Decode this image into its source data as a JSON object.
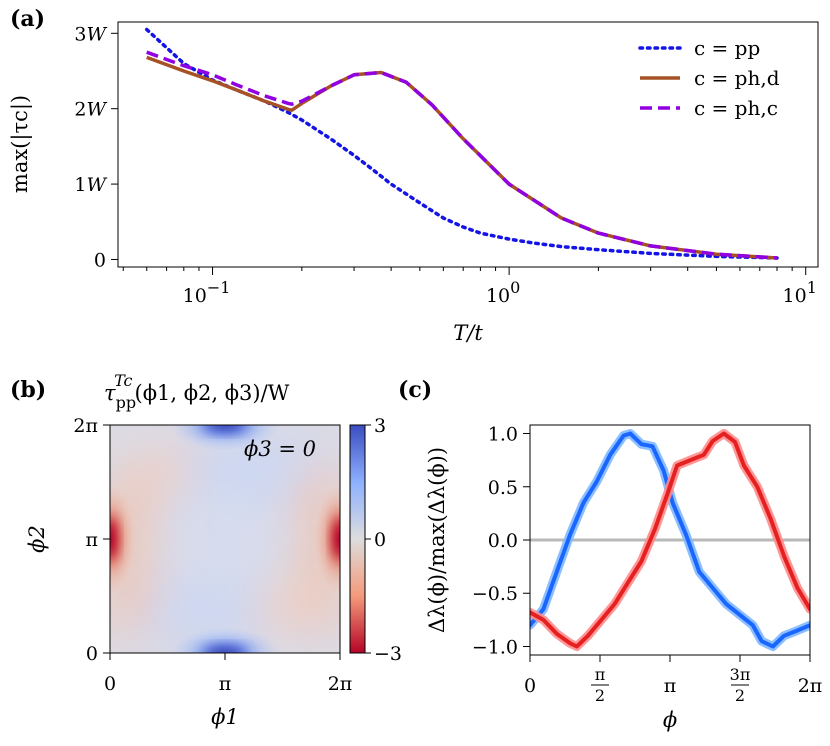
{
  "chart_data": [
    {
      "panel_label": "(a)",
      "type": "line",
      "xscale": "log",
      "xlabel": "T/t",
      "ylabel": "max(|τc|)",
      "xlim": [
        0.048,
        11
      ],
      "ylim": [
        -0.1,
        3.15
      ],
      "xticks": [
        {
          "value": 0.1,
          "base": "10",
          "exp": "−1"
        },
        {
          "value": 1,
          "base": "10",
          "exp": "0"
        },
        {
          "value": 10,
          "base": "10",
          "exp": "1"
        }
      ],
      "yticks": [
        {
          "value": 0,
          "label": "0"
        },
        {
          "value": 1,
          "label": "1W"
        },
        {
          "value": 2,
          "label": "2W"
        },
        {
          "value": 3,
          "label": "3W"
        }
      ],
      "legend_position": "top-right",
      "series": [
        {
          "name": "c = pp",
          "color": "#1414e6",
          "dash": "dotted",
          "x": [
            0.06,
            0.08,
            0.1,
            0.12,
            0.15,
            0.18,
            0.2,
            0.25,
            0.3,
            0.35,
            0.4,
            0.5,
            0.6,
            0.7,
            0.8,
            1.0,
            1.2,
            1.5,
            2.0,
            3.0,
            5.0,
            8.0
          ],
          "y": [
            3.05,
            2.6,
            2.38,
            2.25,
            2.1,
            1.95,
            1.85,
            1.6,
            1.38,
            1.18,
            1.0,
            0.75,
            0.55,
            0.43,
            0.35,
            0.27,
            0.22,
            0.17,
            0.13,
            0.08,
            0.04,
            0.02
          ]
        },
        {
          "name": "c = ph,d",
          "color": "#a65224",
          "dash": "solid",
          "x": [
            0.06,
            0.08,
            0.1,
            0.12,
            0.15,
            0.18,
            0.185,
            0.2,
            0.25,
            0.3,
            0.37,
            0.45,
            0.55,
            0.7,
            1.0,
            1.5,
            2.0,
            3.0,
            5.0,
            8.0
          ],
          "y": [
            2.68,
            2.5,
            2.37,
            2.25,
            2.1,
            1.99,
            1.98,
            2.07,
            2.3,
            2.45,
            2.48,
            2.35,
            2.05,
            1.6,
            1.0,
            0.55,
            0.35,
            0.18,
            0.07,
            0.02
          ]
        },
        {
          "name": "c = ph,c",
          "color": "#9000e0",
          "dash": "dashed",
          "x": [
            0.06,
            0.08,
            0.1,
            0.12,
            0.15,
            0.18,
            0.185,
            0.2,
            0.25,
            0.3,
            0.37,
            0.45,
            0.55,
            0.7,
            1.0,
            1.5,
            2.0,
            3.0,
            5.0,
            8.0
          ],
          "y": [
            2.75,
            2.57,
            2.45,
            2.32,
            2.17,
            2.07,
            2.06,
            2.1,
            2.3,
            2.45,
            2.48,
            2.35,
            2.05,
            1.6,
            1.0,
            0.55,
            0.35,
            0.18,
            0.07,
            0.02
          ]
        }
      ]
    },
    {
      "panel_label": "(b)",
      "type": "heatmap",
      "title_main": "τ",
      "title_sub": "pp",
      "title_sup": "Tc",
      "title_args": "(ϕ1, ϕ2, ϕ3)/W",
      "annotation": "ϕ3 = 0",
      "xlabel": "ϕ1",
      "ylabel": "ϕ2",
      "xticks": [
        "0",
        "π",
        "2π"
      ],
      "yticks": [
        "0",
        "π",
        "2π"
      ],
      "colorbar_ticks": [
        "3",
        "0",
        "−3"
      ],
      "clim": [
        -3,
        3
      ],
      "colormap": "coolwarm",
      "features": [
        {
          "phi1": 0,
          "phi2": 3.1416,
          "value": -3.0
        },
        {
          "phi1": 6.2832,
          "phi2": 3.1416,
          "value": -3.0
        },
        {
          "phi1": 3.1416,
          "phi2": 0,
          "value": 3.0
        },
        {
          "phi1": 3.1416,
          "phi2": 6.2832,
          "value": 3.0
        }
      ]
    },
    {
      "panel_label": "(c)",
      "type": "line",
      "xlabel": "ϕ",
      "ylabel": "Δλ(ϕ)/max(Δλ(ϕ))",
      "xlim": [
        0,
        6.2832
      ],
      "ylim": [
        -1.08,
        1.08
      ],
      "xticks": [
        {
          "value": 0,
          "label": "0"
        },
        {
          "value": 1.5708,
          "label": "π/2"
        },
        {
          "value": 3.1416,
          "label": "π"
        },
        {
          "value": 4.7124,
          "label": "3π/2"
        },
        {
          "value": 6.2832,
          "label": "2π"
        }
      ],
      "yticks": [
        {
          "value": 1.0,
          "label": "1.0"
        },
        {
          "value": 0.5,
          "label": "0.5"
        },
        {
          "value": 0.0,
          "label": "0.0"
        },
        {
          "value": -0.5,
          "label": "−0.5"
        },
        {
          "value": -1.0,
          "label": "−1.0"
        }
      ],
      "zero_line": true,
      "series": [
        {
          "name": "blue eigenvector",
          "color": "#1a66ff",
          "x": [
            0,
            0.3,
            0.6,
            0.9,
            1.2,
            1.5,
            1.8,
            2.1,
            2.25,
            2.5,
            2.75,
            3.0,
            3.2,
            3.5,
            3.8,
            4.1,
            4.4,
            4.7,
            5.0,
            5.2,
            5.45,
            5.7,
            6.0,
            6.2832
          ],
          "y": [
            -0.8,
            -0.65,
            -0.3,
            0.05,
            0.35,
            0.55,
            0.8,
            0.98,
            1.0,
            0.9,
            0.88,
            0.65,
            0.35,
            0.05,
            -0.3,
            -0.45,
            -0.6,
            -0.7,
            -0.8,
            -0.95,
            -1.0,
            -0.9,
            -0.85,
            -0.8
          ]
        },
        {
          "name": "red eigenvector",
          "color": "#e62020",
          "x": [
            0,
            0.3,
            0.6,
            0.9,
            1.05,
            1.3,
            1.6,
            1.9,
            2.2,
            2.5,
            2.8,
            3.1,
            3.3,
            3.6,
            3.9,
            4.1,
            4.35,
            4.6,
            4.8,
            5.1,
            5.4,
            5.7,
            6.0,
            6.2832
          ],
          "y": [
            -0.68,
            -0.75,
            -0.88,
            -0.97,
            -1.0,
            -0.9,
            -0.75,
            -0.6,
            -0.4,
            -0.2,
            0.1,
            0.45,
            0.7,
            0.75,
            0.8,
            0.93,
            1.0,
            0.92,
            0.7,
            0.5,
            0.2,
            -0.15,
            -0.45,
            -0.65
          ]
        }
      ]
    }
  ]
}
